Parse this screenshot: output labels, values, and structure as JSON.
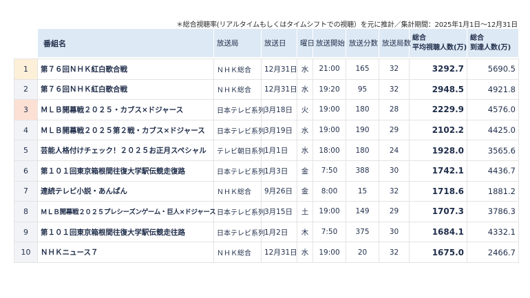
{
  "note": "＊総合視聴率(リアルタイムもしくはタイムシフトでの視聴）を元に推計／集計期間：2025年1月1日～12月31日",
  "headers": {
    "rank": "",
    "title": "番組名",
    "station": "放送局",
    "date": "放送日",
    "day": "曜日",
    "start": "放送開始",
    "minutes": "放送分数",
    "count": "放送局数",
    "avg_line1": "総合",
    "avg_line2": "平均視聴人数(万)",
    "reach_line1": "総合",
    "reach_line2": "到達人数(万)"
  },
  "rows": [
    {
      "rank": "1",
      "title": "第７６回ＮＨＫ紅白歌合戦",
      "station": "ＮＨＫ総合",
      "date": "12月31日",
      "day": "水",
      "start": "21:00",
      "minutes": "165",
      "count": "32",
      "avg": "3292.7",
      "reach": "5690.5"
    },
    {
      "rank": "2",
      "title": "第７６回ＮＨＫ紅白歌合戦",
      "station": "ＮＨＫ総合",
      "date": "12月31日",
      "day": "水",
      "start": "19:20",
      "minutes": "95",
      "count": "32",
      "avg": "2948.5",
      "reach": "4921.8"
    },
    {
      "rank": "3",
      "title": "ＭＬＢ開幕戦２０２５・カブス×ドジャース",
      "station": "日本テレビ系列",
      "date": "3月18日",
      "day": "火",
      "start": "19:00",
      "minutes": "180",
      "count": "28",
      "avg": "2229.9",
      "reach": "4576.0"
    },
    {
      "rank": "4",
      "title": "ＭＬＢ開幕戦２０２５第２戦・カブス×ドジャース",
      "station": "日本テレビ系列",
      "date": "3月19日",
      "day": "水",
      "start": "19:00",
      "minutes": "190",
      "count": "29",
      "avg": "2102.2",
      "reach": "4425.0"
    },
    {
      "rank": "5",
      "title": "芸能人格付けチェック！２０２５お正月スペシャル",
      "station": "テレビ朝日系列",
      "date": "1月1日",
      "day": "水",
      "start": "18:00",
      "minutes": "180",
      "count": "24",
      "avg": "1928.0",
      "reach": "3565.6"
    },
    {
      "rank": "6",
      "title": "第１０１回東京箱根間往復大学駅伝競走復路",
      "station": "日本テレビ系列",
      "date": "1月3日",
      "day": "金",
      "start": "7:50",
      "minutes": "388",
      "count": "30",
      "avg": "1742.1",
      "reach": "4436.7"
    },
    {
      "rank": "7",
      "title": "連続テレビ小説・あんぱん",
      "station": "ＮＨＫ総合",
      "date": "9月26日",
      "day": "金",
      "start": "8:00",
      "minutes": "15",
      "count": "32",
      "avg": "1718.6",
      "reach": "1881.2"
    },
    {
      "rank": "8",
      "title": "ＭＬＢ開幕戦２０２５プレシーズンゲーム・巨人×ドジャース",
      "station": "日本テレビ系列",
      "date": "3月15日",
      "day": "土",
      "start": "19:00",
      "minutes": "149",
      "count": "29",
      "avg": "1707.3",
      "reach": "3786.3"
    },
    {
      "rank": "9",
      "title": "第１０１回東京箱根間往復大学駅伝競走往路",
      "station": "日本テレビ系列",
      "date": "1月2日",
      "day": "木",
      "start": "7:50",
      "minutes": "375",
      "count": "30",
      "avg": "1684.1",
      "reach": "4332.1"
    },
    {
      "rank": "10",
      "title": "ＮＨＫニュース７",
      "station": "ＮＨＫ総合",
      "date": "12月31日",
      "day": "水",
      "start": "19:00",
      "minutes": "20",
      "count": "32",
      "avg": "1675.0",
      "reach": "2466.7"
    }
  ]
}
